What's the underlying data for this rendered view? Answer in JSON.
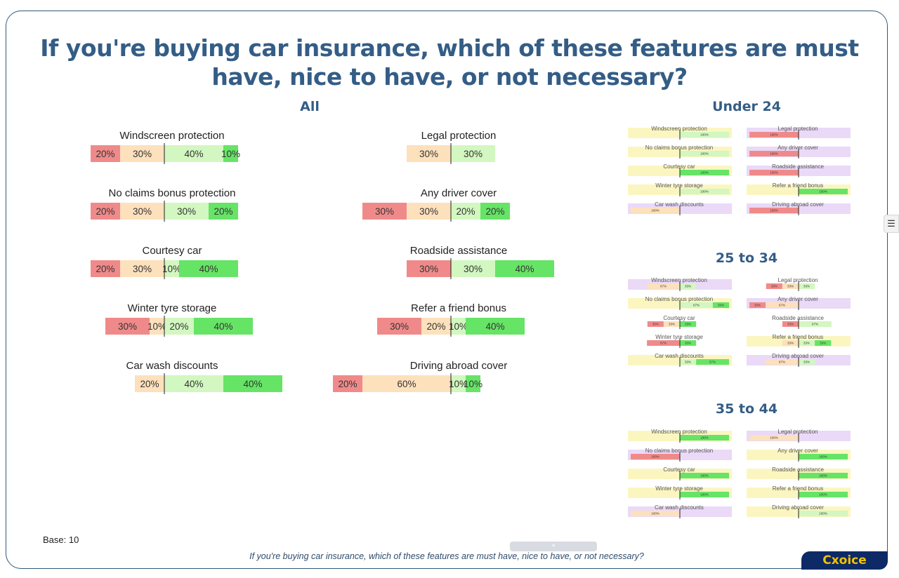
{
  "title": "If you're buying car insurance, which of these features are must have, nice to have, or not necessary?",
  "base_label": "Base: 10",
  "footer_question": "If you're buying car insurance, which of these features are must have, nice to have, or not necessary?",
  "brand": "Cxoice",
  "scrollbar_glyph": "+",
  "side_handle_glyph": "☰",
  "colors": {
    "strong_neg": "#f08a8a",
    "neg": "#fde0bc",
    "pos": "#d2f7c0",
    "strong_pos": "#66e466",
    "bg_yellow": "#fbf6c0",
    "bg_purple": "#ead9f7"
  },
  "chart_data": [
    {
      "type": "bar",
      "title": "All",
      "layout": "diverging-stacked",
      "categories": [
        "Windscreen protection",
        "No claims bonus protection",
        "Courtesy car",
        "Winter tyre storage",
        "Car wash discounts",
        "Legal protection",
        "Any driver cover",
        "Roadside assistance",
        "Refer a friend bonus",
        "Driving abroad cover"
      ],
      "series": [
        {
          "values": [
            20,
            20,
            20,
            30,
            0,
            0,
            30,
            30,
            30,
            20
          ]
        },
        {
          "values": [
            30,
            30,
            30,
            10,
            20,
            30,
            30,
            0,
            20,
            60
          ]
        },
        {
          "values": [
            40,
            30,
            10,
            20,
            40,
            30,
            20,
            30,
            10,
            10
          ]
        },
        {
          "values": [
            10,
            20,
            40,
            40,
            40,
            0,
            20,
            40,
            40,
            10
          ]
        }
      ],
      "value_format": "{v}%"
    },
    {
      "type": "bar",
      "title": "Under 24",
      "layout": "diverging-stacked",
      "categories": [
        "Windscreen protection",
        "No claims bonus protection",
        "Courtesy car",
        "Winter tyre storage",
        "Car wash discounts",
        "Legal protection",
        "Any driver cover",
        "Roadside assistance",
        "Refer a friend bonus",
        "Driving abroad cover"
      ],
      "series": [
        {
          "values": [
            0,
            0,
            0,
            0,
            0,
            100,
            100,
            100,
            0,
            100
          ]
        },
        {
          "values": [
            0,
            0,
            0,
            0,
            100,
            0,
            0,
            0,
            0,
            0
          ]
        },
        {
          "values": [
            100,
            100,
            0,
            100,
            0,
            0,
            0,
            0,
            0,
            0
          ]
        },
        {
          "values": [
            0,
            0,
            100,
            0,
            0,
            0,
            0,
            0,
            100,
            0
          ]
        }
      ],
      "value_format": "{v}%"
    },
    {
      "type": "bar",
      "title": "25 to 34",
      "layout": "diverging-stacked",
      "categories": [
        "Windscreen protection",
        "No claims bonus protection",
        "Courtesy car",
        "Winter tyre storage",
        "Car wash discounts",
        "Legal protection",
        "Any driver cover",
        "Roadside assistance",
        "Refer a friend bonus",
        "Driving abroad cover"
      ],
      "series": [
        {
          "values": [
            0,
            0,
            33,
            67,
            0,
            33,
            33,
            33,
            0,
            0
          ]
        },
        {
          "values": [
            67,
            0,
            33,
            0,
            0,
            33,
            67,
            0,
            33,
            67
          ]
        },
        {
          "values": [
            33,
            67,
            0,
            0,
            33,
            33,
            0,
            67,
            33,
            33
          ]
        },
        {
          "values": [
            0,
            33,
            33,
            33,
            67,
            0,
            0,
            0,
            33,
            0
          ]
        }
      ],
      "value_format": "{v}%"
    },
    {
      "type": "bar",
      "title": "35 to 44",
      "layout": "diverging-stacked",
      "categories": [
        "Windscreen protection",
        "No claims bonus protection",
        "Courtesy car",
        "Winter tyre storage",
        "Car wash discounts",
        "Legal protection",
        "Any driver cover",
        "Roadside assistance",
        "Refer a friend bonus",
        "Driving abroad cover"
      ],
      "series": [
        {
          "values": [
            0,
            100,
            0,
            0,
            0,
            0,
            0,
            0,
            0,
            0
          ]
        },
        {
          "values": [
            0,
            0,
            0,
            0,
            100,
            100,
            0,
            0,
            0,
            0
          ]
        },
        {
          "values": [
            0,
            0,
            0,
            0,
            0,
            0,
            0,
            0,
            0,
            100
          ]
        },
        {
          "values": [
            100,
            0,
            100,
            100,
            0,
            0,
            100,
            100,
            100,
            0
          ]
        }
      ],
      "value_format": "{v}%"
    }
  ]
}
